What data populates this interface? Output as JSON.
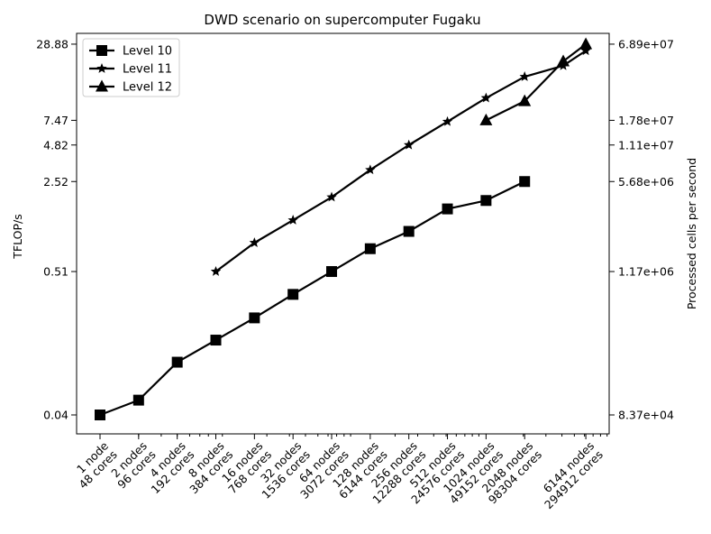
{
  "chart_data": {
    "type": "line",
    "title": "DWD scenario on supercomputer Fugaku",
    "xlabel": "",
    "ylabel": "TFLOP/s",
    "ylabel_right": "Processed cells per second",
    "x_scale": "log",
    "y_scale": "log",
    "grid": false,
    "legend_position": "top-left",
    "x_tick_labels": [
      {
        "nodes": 1,
        "label": "1 node\n48 cores"
      },
      {
        "nodes": 2,
        "label": "2 nodes\n96 cores"
      },
      {
        "nodes": 4,
        "label": "4 nodes\n192 cores"
      },
      {
        "nodes": 8,
        "label": "8 nodes\n384 cores"
      },
      {
        "nodes": 16,
        "label": "16 nodes\n768 cores"
      },
      {
        "nodes": 32,
        "label": "32 nodes\n1536 cores"
      },
      {
        "nodes": 64,
        "label": "64 nodes\n3072 cores"
      },
      {
        "nodes": 128,
        "label": "128 nodes\n6144 cores"
      },
      {
        "nodes": 256,
        "label": "256 nodes\n12288 cores"
      },
      {
        "nodes": 512,
        "label": "512 nodes\n24576 cores"
      },
      {
        "nodes": 1024,
        "label": "1024 nodes\n49152 cores"
      },
      {
        "nodes": 2048,
        "label": "2048 nodes\n98304 cores"
      },
      {
        "nodes": 6144,
        "label": "6144 nodes\n294912 cores"
      }
    ],
    "y_ticks_left": [
      {
        "value": 0.04,
        "label": "0.04"
      },
      {
        "value": 0.51,
        "label": "0.51"
      },
      {
        "value": 2.52,
        "label": "2.52"
      },
      {
        "value": 4.82,
        "label": "4.82"
      },
      {
        "value": 7.47,
        "label": "7.47"
      },
      {
        "value": 28.88,
        "label": "28.88"
      }
    ],
    "y_ticks_right": [
      {
        "value": 0.04,
        "label": "8.37e+04"
      },
      {
        "value": 0.51,
        "label": "1.17e+06"
      },
      {
        "value": 2.52,
        "label": "5.68e+06"
      },
      {
        "value": 4.82,
        "label": "1.11e+07"
      },
      {
        "value": 7.47,
        "label": "1.78e+07"
      },
      {
        "value": 28.88,
        "label": "6.89e+07"
      }
    ],
    "series": [
      {
        "name": "Level 10",
        "marker": "square",
        "points": [
          {
            "x": 1,
            "y": 0.04
          },
          {
            "x": 2,
            "y": 0.052
          },
          {
            "x": 4,
            "y": 0.102
          },
          {
            "x": 8,
            "y": 0.151
          },
          {
            "x": 16,
            "y": 0.224
          },
          {
            "x": 32,
            "y": 0.34
          },
          {
            "x": 64,
            "y": 0.51
          },
          {
            "x": 128,
            "y": 0.765
          },
          {
            "x": 256,
            "y": 1.04
          },
          {
            "x": 512,
            "y": 1.55
          },
          {
            "x": 1024,
            "y": 1.8
          },
          {
            "x": 2048,
            "y": 2.52
          }
        ]
      },
      {
        "name": "Level 11",
        "marker": "star",
        "points": [
          {
            "x": 8,
            "y": 0.51
          },
          {
            "x": 16,
            "y": 0.85
          },
          {
            "x": 32,
            "y": 1.27
          },
          {
            "x": 64,
            "y": 1.91
          },
          {
            "x": 128,
            "y": 3.1
          },
          {
            "x": 256,
            "y": 4.82
          },
          {
            "x": 512,
            "y": 7.3
          },
          {
            "x": 1024,
            "y": 11.1
          },
          {
            "x": 2048,
            "y": 16.2
          },
          {
            "x": 4096,
            "y": 19.7
          },
          {
            "x": 6144,
            "y": 25.7
          }
        ]
      },
      {
        "name": "Level 12",
        "marker": "triangle",
        "points": [
          {
            "x": 1024,
            "y": 7.47
          },
          {
            "x": 2048,
            "y": 10.5
          },
          {
            "x": 4096,
            "y": 21.3
          },
          {
            "x": 6144,
            "y": 28.88
          }
        ]
      }
    ]
  }
}
